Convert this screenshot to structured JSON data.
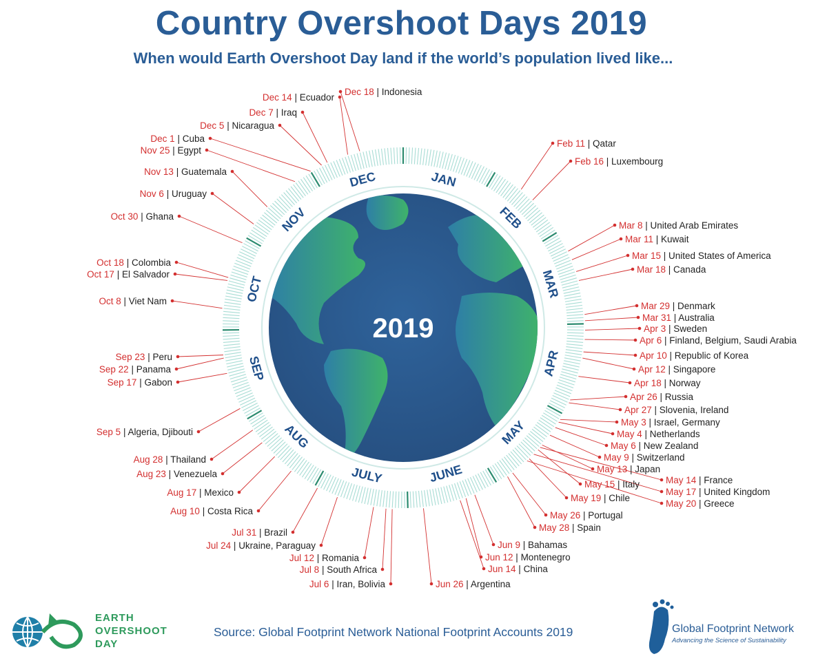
{
  "colors": {
    "accent": "#2a5d96",
    "date": "#d32f2f",
    "earth_dark": "#2b5a8e",
    "earth_land": "#3aa56a",
    "ring": "#9fd6cf",
    "ring_dark": "#3a9a7a"
  },
  "header": {
    "title": "Country Overshoot Days 2019",
    "subtitle": "When would Earth Overshoot Day land if the world’s population lived like..."
  },
  "chart_data": {
    "type": "radial-timeline",
    "title": "Country Overshoot Days 2019",
    "subtitle": "When would Earth Overshoot Day land if the world’s population lived like...",
    "center_label": "2019",
    "months": [
      "JAN",
      "FEB",
      "MAR",
      "APR",
      "MAY",
      "JUNE",
      "JULY",
      "AUG",
      "SEP",
      "OCT",
      "NOV",
      "DEC"
    ],
    "entries": [
      {
        "date": "Feb 11",
        "day_of_year": 42,
        "countries": "Qatar",
        "side": "right"
      },
      {
        "date": "Feb 16",
        "day_of_year": 47,
        "countries": "Luxembourg",
        "side": "right"
      },
      {
        "date": "Mar 8",
        "day_of_year": 67,
        "countries": "United Arab Emirates",
        "side": "right"
      },
      {
        "date": "Mar 11",
        "day_of_year": 70,
        "countries": "Kuwait",
        "side": "right"
      },
      {
        "date": "Mar 15",
        "day_of_year": 74,
        "countries": "United States of America",
        "side": "right"
      },
      {
        "date": "Mar 18",
        "day_of_year": 77,
        "countries": "Canada",
        "side": "right"
      },
      {
        "date": "Mar 29",
        "day_of_year": 88,
        "countries": "Denmark",
        "side": "right"
      },
      {
        "date": "Mar 31",
        "day_of_year": 90,
        "countries": "Australia",
        "side": "right"
      },
      {
        "date": "Apr 3",
        "day_of_year": 93,
        "countries": "Sweden",
        "side": "right"
      },
      {
        "date": "Apr 6",
        "day_of_year": 96,
        "countries": "Finland, Belgium, Saudi Arabia",
        "side": "right"
      },
      {
        "date": "Apr 10",
        "day_of_year": 100,
        "countries": "Republic of Korea",
        "side": "right"
      },
      {
        "date": "Apr 12",
        "day_of_year": 102,
        "countries": "Singapore",
        "side": "right"
      },
      {
        "date": "Apr 18",
        "day_of_year": 108,
        "countries": "Norway",
        "side": "right"
      },
      {
        "date": "Apr 26",
        "day_of_year": 116,
        "countries": "Russia",
        "side": "right"
      },
      {
        "date": "Apr 27",
        "day_of_year": 117,
        "countries": "Slovenia, Ireland",
        "side": "right"
      },
      {
        "date": "May 3",
        "day_of_year": 123,
        "countries": "Israel, Germany",
        "side": "right"
      },
      {
        "date": "May 4",
        "day_of_year": 124,
        "countries": "Netherlands",
        "side": "right"
      },
      {
        "date": "May 6",
        "day_of_year": 126,
        "countries": "New Zealand",
        "side": "right"
      },
      {
        "date": "May 9",
        "day_of_year": 129,
        "countries": "Switzerland",
        "side": "right"
      },
      {
        "date": "May 13",
        "day_of_year": 133,
        "countries": "Japan",
        "side": "right"
      },
      {
        "date": "May 14",
        "day_of_year": 134,
        "countries": "France",
        "side": "right"
      },
      {
        "date": "May 15",
        "day_of_year": 135,
        "countries": "Italy",
        "side": "right"
      },
      {
        "date": "May 17",
        "day_of_year": 137,
        "countries": "United Kingdom",
        "side": "right"
      },
      {
        "date": "May 19",
        "day_of_year": 139,
        "countries": "Chile",
        "side": "right"
      },
      {
        "date": "May 20",
        "day_of_year": 140,
        "countries": "Greece",
        "side": "right"
      },
      {
        "date": "May 26",
        "day_of_year": 146,
        "countries": "Portugal",
        "side": "right"
      },
      {
        "date": "May 28",
        "day_of_year": 148,
        "countries": "Spain",
        "side": "right"
      },
      {
        "date": "Jun 9",
        "day_of_year": 160,
        "countries": "Bahamas",
        "side": "right"
      },
      {
        "date": "Jun 12",
        "day_of_year": 163,
        "countries": "Montenegro",
        "side": "right"
      },
      {
        "date": "Jun 14",
        "day_of_year": 165,
        "countries": "China",
        "side": "right"
      },
      {
        "date": "Jun 26",
        "day_of_year": 177,
        "countries": "Argentina",
        "side": "right"
      },
      {
        "date": "Jul 6",
        "day_of_year": 187,
        "countries": "Iran, Bolivia",
        "side": "left"
      },
      {
        "date": "Jul 8",
        "day_of_year": 189,
        "countries": "South Africa",
        "side": "left"
      },
      {
        "date": "Jul 12",
        "day_of_year": 193,
        "countries": "Romania",
        "side": "left"
      },
      {
        "date": "Jul 24",
        "day_of_year": 205,
        "countries": "Ukraine, Paraguay",
        "side": "left"
      },
      {
        "date": "Jul 31",
        "day_of_year": 212,
        "countries": "Brazil",
        "side": "left"
      },
      {
        "date": "Aug 10",
        "day_of_year": 222,
        "countries": "Costa Rica",
        "side": "left"
      },
      {
        "date": "Aug 17",
        "day_of_year": 229,
        "countries": "Mexico",
        "side": "left"
      },
      {
        "date": "Aug 23",
        "day_of_year": 235,
        "countries": "Venezuela",
        "side": "left"
      },
      {
        "date": "Aug 28",
        "day_of_year": 240,
        "countries": "Thailand",
        "side": "left"
      },
      {
        "date": "Sep  5",
        "day_of_year": 248,
        "countries": "Algeria, Djibouti",
        "side": "left"
      },
      {
        "date": "Sep 17",
        "day_of_year": 260,
        "countries": "Gabon",
        "side": "left"
      },
      {
        "date": "Sep 22",
        "day_of_year": 265,
        "countries": "Panama",
        "side": "left"
      },
      {
        "date": "Sep 23",
        "day_of_year": 266,
        "countries": "Peru",
        "side": "left"
      },
      {
        "date": "Oct 8",
        "day_of_year": 281,
        "countries": "Viet Nam",
        "side": "left"
      },
      {
        "date": "Oct 17",
        "day_of_year": 290,
        "countries": "El Salvador",
        "side": "left"
      },
      {
        "date": "Oct 18",
        "day_of_year": 291,
        "countries": "Colombia",
        "side": "left"
      },
      {
        "date": "Oct 30",
        "day_of_year": 303,
        "countries": "Ghana",
        "side": "left"
      },
      {
        "date": "Nov 6",
        "day_of_year": 310,
        "countries": "Uruguay",
        "side": "left"
      },
      {
        "date": "Nov 13",
        "day_of_year": 317,
        "countries": "Guatemala",
        "side": "left"
      },
      {
        "date": "Nov 25",
        "day_of_year": 329,
        "countries": "Egypt",
        "side": "left"
      },
      {
        "date": "Dec 1",
        "day_of_year": 335,
        "countries": "Cuba",
        "side": "left"
      },
      {
        "date": "Dec 5",
        "day_of_year": 339,
        "countries": "Nicaragua",
        "side": "left"
      },
      {
        "date": "Dec 7",
        "day_of_year": 341,
        "countries": "Iraq",
        "side": "left"
      },
      {
        "date": "Dec 14",
        "day_of_year": 348,
        "countries": "Ecuador",
        "side": "left"
      },
      {
        "date": "Dec 18",
        "day_of_year": 352,
        "countries": "Indonesia",
        "side": "right"
      }
    ]
  },
  "footer": {
    "source": "Source: Global Footprint Network National Footprint Accounts 2019",
    "eod_logo": {
      "line1": "EARTH",
      "line2": "OVERSHOOT",
      "line3": "DAY",
      "icon": "globe-infinity-icon"
    },
    "gfn_logo": {
      "name": "Global Footprint Network",
      "tagline": "Advancing the Science of Sustainability",
      "icon": "footprint-icon"
    }
  }
}
